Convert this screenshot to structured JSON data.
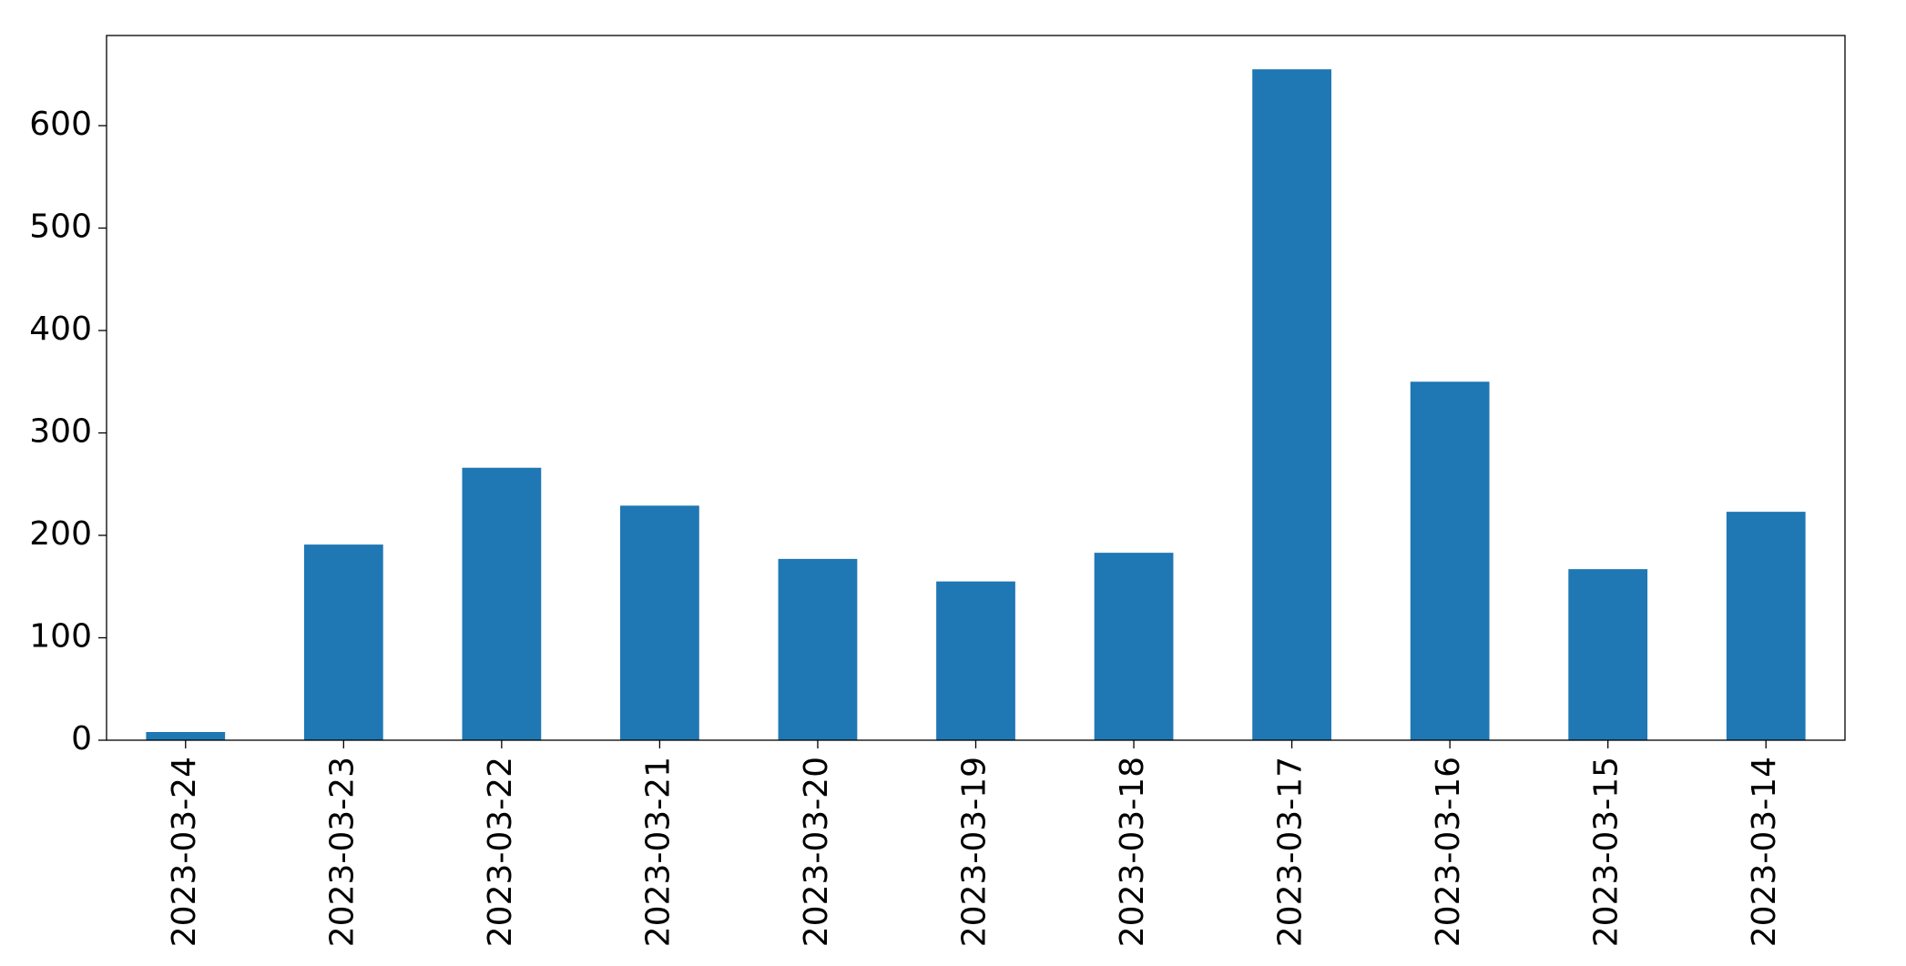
{
  "chart_data": {
    "type": "bar",
    "categories": [
      "2023-03-24",
      "2023-03-23",
      "2023-03-22",
      "2023-03-21",
      "2023-03-20",
      "2023-03-19",
      "2023-03-18",
      "2023-03-17",
      "2023-03-16",
      "2023-03-15",
      "2023-03-14"
    ],
    "values": [
      8,
      191,
      266,
      229,
      177,
      155,
      183,
      655,
      350,
      167,
      223
    ],
    "color": "#1f77b4",
    "ylim": [
      0,
      688
    ],
    "yticks": [
      0,
      100,
      200,
      300,
      400,
      500,
      600
    ],
    "grid": false
  }
}
